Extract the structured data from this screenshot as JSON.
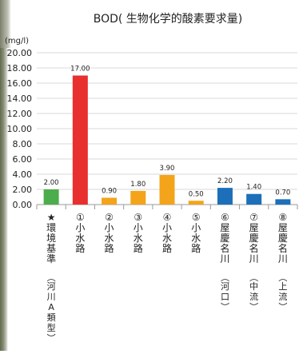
{
  "chart_data": {
    "type": "bar",
    "title": "BOD( 生物化学的酸素要求量)",
    "unit_label": "(mg/l)",
    "ylim": [
      0,
      20
    ],
    "y_ticks": [
      "20.00",
      "18.00",
      "16.00",
      "14.00",
      "12.00",
      "10.00",
      "8.00",
      "6.00",
      "4.00",
      "2.00",
      "0.00"
    ],
    "grid": true,
    "legend": "none",
    "categories": [
      "★環境基準 (河川A類型)",
      "①小水路",
      "②小水路",
      "③小水路",
      "④小水路",
      "⑤小水路",
      "⑥屋慶名川 (河口)",
      "⑦屋慶名川 (中流)",
      "⑧屋慶名川 (上流)"
    ],
    "values": [
      2.0,
      17.0,
      0.9,
      1.8,
      3.9,
      0.5,
      2.2,
      1.4,
      0.7
    ],
    "data_labels": [
      "2.00",
      "17.00",
      "0.90",
      "1.80",
      "3.90",
      "0.50",
      "2.20",
      "1.40",
      "0.70"
    ],
    "category_labels": [
      {
        "line1": "★環境基準",
        "line2": "(河川A類型)"
      },
      {
        "line1": "①小水路",
        "line2": ""
      },
      {
        "line1": "②小水路",
        "line2": ""
      },
      {
        "line1": "③小水路",
        "line2": ""
      },
      {
        "line1": "④小水路",
        "line2": ""
      },
      {
        "line1": "⑤小水路",
        "line2": ""
      },
      {
        "line1": "⑥屋慶名川",
        "line2": "(河口)"
      },
      {
        "line1": "⑦屋慶名川",
        "line2": "(中流)"
      },
      {
        "line1": "⑧屋慶名川",
        "line2": "(上流)"
      }
    ],
    "colors": [
      "#4cad4c",
      "#e8302f",
      "#f3a41b",
      "#f3a41b",
      "#f3a41b",
      "#f3a41b",
      "#1c6fb8",
      "#1c6fb8",
      "#1c6fb8"
    ]
  }
}
